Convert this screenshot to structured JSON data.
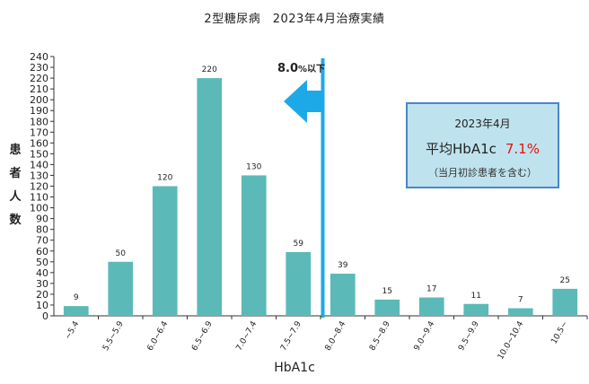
{
  "chart_data": {
    "type": "bar",
    "title": "2型糖尿病　2023年4月治療実績",
    "xlabel": "HbA1c",
    "ylabel": "患者人数",
    "ylim": [
      0,
      240
    ],
    "ytick_step": 10,
    "grid": false,
    "categories": [
      "~5.4",
      "5.5~5.9",
      "6.0~6.4",
      "6.5~6.9",
      "7.0~7.4",
      "7.5~7.9",
      "8.0~8.4",
      "8.5~8.9",
      "9.0~9.4",
      "9.5~9.9",
      "10.0~10.4",
      "10.5~"
    ],
    "values": [
      9,
      50,
      120,
      220,
      130,
      59,
      39,
      15,
      17,
      11,
      7,
      25
    ],
    "bar_color": "#5bbab8",
    "threshold": {
      "value_label": "8.0",
      "suffix": "%以下",
      "line_color": "#1da9e8",
      "position_category_index": 6
    },
    "annotation": {
      "date": "2023年4月",
      "metric": "平均HbA1c",
      "value": "7.1%",
      "note": "（当月初診患者を含む）",
      "value_color": "#e3120b",
      "box_fill": "#bfe3ee",
      "box_border": "#4a86c8"
    }
  }
}
